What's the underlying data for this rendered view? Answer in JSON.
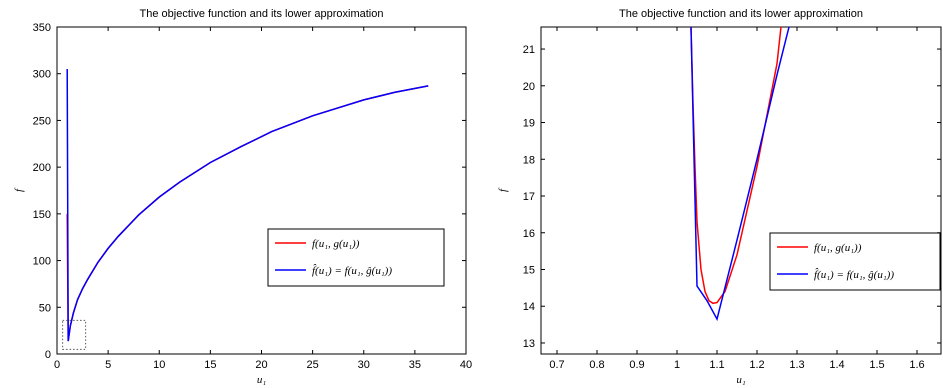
{
  "chart_data": [
    {
      "type": "line",
      "title": "The objective function and its lower approximation",
      "xlabel": "u₁",
      "ylabel": "f",
      "xlim": [
        0,
        40
      ],
      "ylim": [
        0,
        350
      ],
      "xticks": [
        0,
        5,
        10,
        15,
        20,
        25,
        30,
        35,
        40
      ],
      "yticks": [
        0,
        50,
        100,
        150,
        200,
        250,
        300,
        350
      ],
      "grid": false,
      "legend_position": "right",
      "zoom_box": {
        "x": [
          0.55,
          2.8
        ],
        "y": [
          5,
          36
        ]
      },
      "series": [
        {
          "name": "f(u₁, g(u₁))",
          "color": "#ff0000",
          "x": [
            1.0,
            1.1,
            1.3,
            1.6,
            2,
            2.5,
            3,
            4,
            5,
            6,
            8,
            10,
            12,
            15,
            18,
            21,
            25,
            30,
            33,
            36.3
          ],
          "y": [
            150,
            14,
            30,
            44,
            58,
            70,
            80,
            98,
            113,
            126,
            149,
            168,
            184,
            205,
            222,
            238,
            255,
            272,
            280,
            287
          ]
        },
        {
          "name": "f̂(u₁) = f(u₁, ĝ(u₁))",
          "color": "#0000ff",
          "x": [
            1.0,
            1.1,
            1.3,
            1.6,
            2,
            2.5,
            3,
            4,
            5,
            6,
            8,
            10,
            12,
            15,
            18,
            21,
            25,
            30,
            33,
            36.3
          ],
          "y": [
            305,
            13.7,
            30,
            44,
            58,
            70,
            80,
            98,
            113,
            126,
            149,
            168,
            184,
            205,
            222,
            238,
            255,
            272,
            280,
            287
          ]
        }
      ]
    },
    {
      "type": "line",
      "title": "The objective function and its lower approximation",
      "xlabel": "u₁",
      "ylabel": "f",
      "xlim": [
        0.66,
        1.66
      ],
      "ylim": [
        12.7,
        21.6
      ],
      "xticks": [
        0.7,
        0.8,
        0.9,
        1.0,
        1.1,
        1.2,
        1.3,
        1.4,
        1.5,
        1.6
      ],
      "xticklabels": [
        "0.7",
        "0.8",
        "0.9",
        "1",
        "1.1",
        "1.2",
        "1.3",
        "1.4",
        "1.5",
        "1.6"
      ],
      "yticks": [
        13,
        14,
        15,
        16,
        17,
        18,
        19,
        20,
        21
      ],
      "grid": false,
      "legend_position": "right",
      "series": [
        {
          "name": "f(u₁, g(u₁))",
          "color": "#ff0000",
          "x": [
            1.035,
            1.04,
            1.045,
            1.05,
            1.06,
            1.07,
            1.08,
            1.09,
            1.1,
            1.12,
            1.15,
            1.2,
            1.25,
            1.26
          ],
          "y": [
            21.6,
            19.5,
            17.8,
            16.3,
            15.0,
            14.4,
            14.15,
            14.08,
            14.1,
            14.4,
            15.4,
            17.8,
            20.6,
            21.6
          ]
        },
        {
          "name": "f̂(u₁) = f(u₁, ĝ(u₁))",
          "color": "#0000ff",
          "x": [
            1.035,
            1.05,
            1.075,
            1.1,
            1.15,
            1.2,
            1.25,
            1.28
          ],
          "y": [
            21.6,
            14.55,
            14.15,
            13.65,
            15.8,
            18.0,
            20.3,
            21.6
          ]
        }
      ]
    }
  ]
}
